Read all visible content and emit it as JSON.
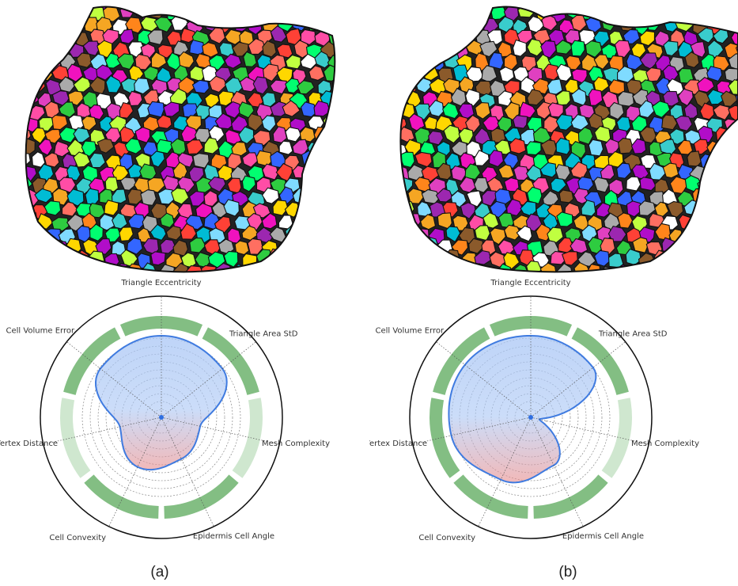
{
  "panels": [
    {
      "id": "a",
      "caption": "(a)",
      "mesh_palette": [
        "#e040c0",
        "#f5a623",
        "#2ecc40",
        "#3366ff",
        "#ff4da6",
        "#ffd700",
        "#8b5a2b",
        "#00bcd4",
        "#9c27b0",
        "#ff6f61",
        "#c0ff40",
        "#ffffff",
        "#7fdbff",
        "#b10dc9",
        "#ff851b",
        "#39cccc",
        "#f012be",
        "#01ff70",
        "#aaaaaa",
        "#ff4136"
      ],
      "axes": [
        "Triangle Eccentricity",
        "Triangle Area StD",
        "Mesh Complexity",
        "Epidermis Cell Angle",
        "Cell Convexity",
        "Vertex Distance",
        "Cell Volume Error"
      ],
      "profile": [
        0.92,
        0.88,
        0.45,
        0.52,
        0.62,
        0.48,
        0.88
      ]
    },
    {
      "id": "b",
      "caption": "(b)",
      "mesh_palette": [
        "#e040c0",
        "#f5a623",
        "#2ecc40",
        "#3366ff",
        "#ff4da6",
        "#ffd700",
        "#8b5a2b",
        "#00bcd4",
        "#9c27b0",
        "#ff6f61",
        "#c0ff40",
        "#ffffff",
        "#7fdbff",
        "#b10dc9",
        "#ff851b",
        "#39cccc",
        "#f012be",
        "#01ff70",
        "#aaaaaa",
        "#ff4136"
      ],
      "axes": [
        "Triangle Eccentricity",
        "Triangle Area StD",
        "Mesh Complexity",
        "Epidermis Cell Angle",
        "Cell Convexity",
        "Vertex Distance",
        "Cell Volume Error"
      ],
      "profile": [
        0.92,
        0.9,
        0.1,
        0.6,
        0.78,
        0.92,
        0.95
      ]
    }
  ],
  "colors": {
    "good_band": "#5aa85a",
    "good_band_light": "#a8d4a8",
    "curve_blue": "#3f7be0",
    "curve_purple": "#7a55a8",
    "fill_blue": "#a9c6f5",
    "fill_red": "#e88a8a",
    "outline": "#111111"
  }
}
